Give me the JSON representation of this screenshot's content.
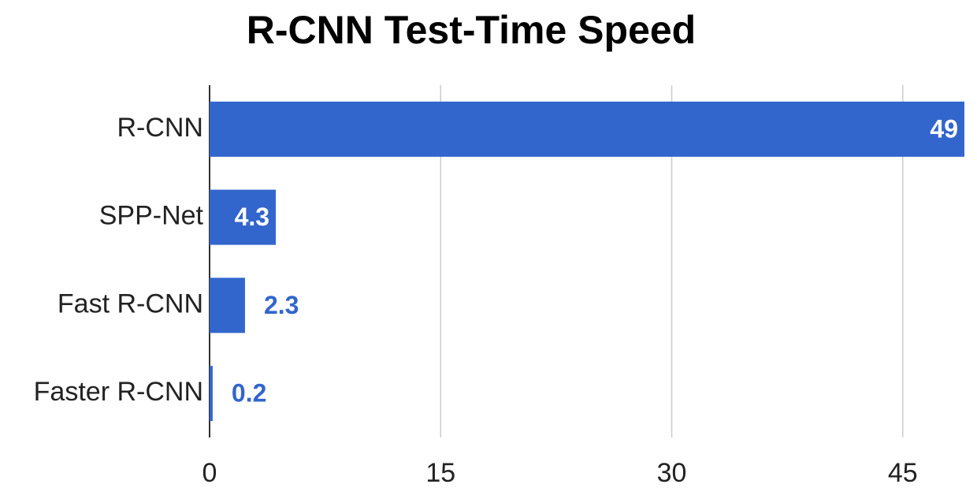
{
  "chart_data": {
    "type": "bar",
    "orientation": "horizontal",
    "title": "R-CNN Test-Time Speed",
    "categories": [
      "R-CNN",
      "SPP-Net",
      "Fast R-CNN",
      "Faster R-CNN"
    ],
    "values": [
      49,
      4.3,
      2.3,
      0.2
    ],
    "color": "#3366cc",
    "xlim": [
      0,
      49
    ],
    "xticks": [
      0,
      15,
      30,
      45
    ],
    "grid": true
  }
}
